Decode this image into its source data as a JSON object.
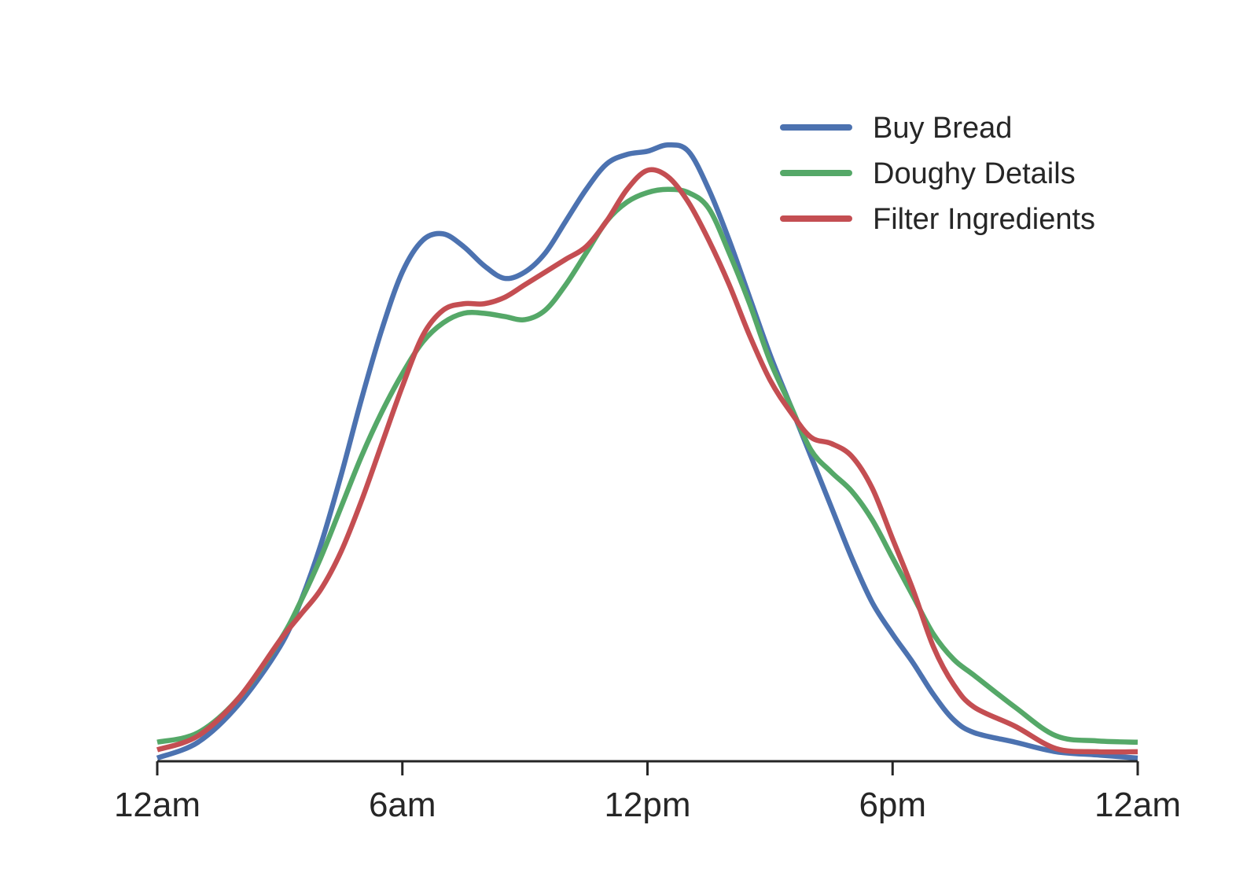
{
  "chart_data": {
    "type": "line",
    "title": "",
    "xlabel": "",
    "ylabel": "",
    "x_unit": "hour of day",
    "xlim": [
      0,
      24
    ],
    "ylim": [
      0,
      1
    ],
    "y_axis_visible": false,
    "grid": false,
    "legend_position": "top-right",
    "x_ticks": [
      {
        "value": 0,
        "label": "12am"
      },
      {
        "value": 6,
        "label": "6am"
      },
      {
        "value": 12,
        "label": "12pm"
      },
      {
        "value": 18,
        "label": "6pm"
      },
      {
        "value": 24,
        "label": "12am"
      }
    ],
    "series": [
      {
        "name": "Buy Bread",
        "color": "#4c72b0",
        "points": [
          [
            0.0,
            0.005
          ],
          [
            1.0,
            0.03
          ],
          [
            2.0,
            0.09
          ],
          [
            3.0,
            0.18
          ],
          [
            3.5,
            0.25
          ],
          [
            4.0,
            0.34
          ],
          [
            4.5,
            0.45
          ],
          [
            5.0,
            0.57
          ],
          [
            5.5,
            0.68
          ],
          [
            6.0,
            0.77
          ],
          [
            6.5,
            0.82
          ],
          [
            7.0,
            0.83
          ],
          [
            7.5,
            0.81
          ],
          [
            8.0,
            0.78
          ],
          [
            8.5,
            0.76
          ],
          [
            9.0,
            0.77
          ],
          [
            9.5,
            0.8
          ],
          [
            10.0,
            0.85
          ],
          [
            10.5,
            0.9
          ],
          [
            11.0,
            0.94
          ],
          [
            11.5,
            0.955
          ],
          [
            12.0,
            0.96
          ],
          [
            12.5,
            0.97
          ],
          [
            13.0,
            0.96
          ],
          [
            13.5,
            0.9
          ],
          [
            14.0,
            0.82
          ],
          [
            14.5,
            0.73
          ],
          [
            15.0,
            0.64
          ],
          [
            15.5,
            0.56
          ],
          [
            16.0,
            0.48
          ],
          [
            16.5,
            0.4
          ],
          [
            17.0,
            0.32
          ],
          [
            17.5,
            0.25
          ],
          [
            18.0,
            0.2
          ],
          [
            18.5,
            0.155
          ],
          [
            19.0,
            0.105
          ],
          [
            19.5,
            0.065
          ],
          [
            20.0,
            0.045
          ],
          [
            21.0,
            0.03
          ],
          [
            22.0,
            0.015
          ],
          [
            23.0,
            0.01
          ],
          [
            24.0,
            0.005
          ]
        ]
      },
      {
        "name": "Doughy Details",
        "color": "#55a868",
        "points": [
          [
            0.0,
            0.03
          ],
          [
            1.0,
            0.045
          ],
          [
            2.0,
            0.1
          ],
          [
            3.0,
            0.19
          ],
          [
            3.5,
            0.25
          ],
          [
            4.0,
            0.32
          ],
          [
            4.5,
            0.4
          ],
          [
            5.0,
            0.48
          ],
          [
            5.5,
            0.55
          ],
          [
            6.0,
            0.61
          ],
          [
            6.5,
            0.66
          ],
          [
            7.0,
            0.69
          ],
          [
            7.5,
            0.705
          ],
          [
            8.0,
            0.705
          ],
          [
            8.5,
            0.7
          ],
          [
            9.0,
            0.695
          ],
          [
            9.5,
            0.71
          ],
          [
            10.0,
            0.75
          ],
          [
            10.5,
            0.8
          ],
          [
            11.0,
            0.85
          ],
          [
            11.5,
            0.88
          ],
          [
            12.0,
            0.895
          ],
          [
            12.5,
            0.9
          ],
          [
            13.0,
            0.895
          ],
          [
            13.5,
            0.87
          ],
          [
            14.0,
            0.8
          ],
          [
            14.5,
            0.72
          ],
          [
            15.0,
            0.63
          ],
          [
            15.5,
            0.56
          ],
          [
            16.0,
            0.49
          ],
          [
            16.5,
            0.455
          ],
          [
            17.0,
            0.425
          ],
          [
            17.5,
            0.38
          ],
          [
            18.0,
            0.32
          ],
          [
            18.5,
            0.26
          ],
          [
            19.0,
            0.2
          ],
          [
            19.5,
            0.16
          ],
          [
            20.0,
            0.135
          ],
          [
            21.0,
            0.085
          ],
          [
            22.0,
            0.04
          ],
          [
            23.0,
            0.032
          ],
          [
            24.0,
            0.03
          ]
        ]
      },
      {
        "name": "Filter Ingredients",
        "color": "#c44e52",
        "points": [
          [
            0.0,
            0.018
          ],
          [
            1.0,
            0.04
          ],
          [
            2.0,
            0.1
          ],
          [
            3.0,
            0.19
          ],
          [
            3.5,
            0.23
          ],
          [
            4.0,
            0.27
          ],
          [
            4.5,
            0.33
          ],
          [
            5.0,
            0.41
          ],
          [
            5.5,
            0.5
          ],
          [
            6.0,
            0.59
          ],
          [
            6.5,
            0.67
          ],
          [
            7.0,
            0.71
          ],
          [
            7.5,
            0.72
          ],
          [
            8.0,
            0.72
          ],
          [
            8.5,
            0.73
          ],
          [
            9.0,
            0.75
          ],
          [
            9.5,
            0.77
          ],
          [
            10.0,
            0.79
          ],
          [
            10.5,
            0.81
          ],
          [
            11.0,
            0.85
          ],
          [
            11.5,
            0.9
          ],
          [
            12.0,
            0.93
          ],
          [
            12.5,
            0.92
          ],
          [
            13.0,
            0.88
          ],
          [
            13.5,
            0.82
          ],
          [
            14.0,
            0.75
          ],
          [
            14.5,
            0.67
          ],
          [
            15.0,
            0.6
          ],
          [
            15.5,
            0.55
          ],
          [
            16.0,
            0.51
          ],
          [
            16.5,
            0.5
          ],
          [
            17.0,
            0.48
          ],
          [
            17.5,
            0.43
          ],
          [
            18.0,
            0.35
          ],
          [
            18.5,
            0.27
          ],
          [
            19.0,
            0.18
          ],
          [
            19.5,
            0.12
          ],
          [
            20.0,
            0.085
          ],
          [
            21.0,
            0.055
          ],
          [
            22.0,
            0.02
          ],
          [
            23.0,
            0.015
          ],
          [
            24.0,
            0.015
          ]
        ]
      }
    ]
  }
}
